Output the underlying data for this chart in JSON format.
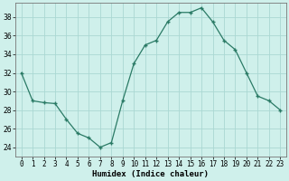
{
  "x": [
    0,
    1,
    2,
    3,
    4,
    5,
    6,
    7,
    8,
    9,
    10,
    11,
    12,
    13,
    14,
    15,
    16,
    17,
    18,
    19,
    20,
    21,
    22,
    23
  ],
  "y": [
    32,
    29,
    28.8,
    28.7,
    27,
    25.5,
    25,
    24,
    24.5,
    29,
    33,
    35,
    35.5,
    37.5,
    38.5,
    38.5,
    39,
    37.5,
    35.5,
    34.5,
    32,
    29.5,
    29,
    28
  ],
  "line_color": "#2a7a65",
  "marker_color": "#2a7a65",
  "bg_color": "#cff0eb",
  "grid_color": "#aad8d3",
  "xlabel": "Humidex (Indice chaleur)",
  "ylim": [
    23.0,
    39.5
  ],
  "yticks": [
    24,
    26,
    28,
    30,
    32,
    34,
    36,
    38
  ],
  "xtick_labels": [
    "0",
    "1",
    "2",
    "3",
    "4",
    "5",
    "6",
    "7",
    "8",
    "9",
    "1011",
    "1213",
    "1415",
    "1617",
    "1819",
    "2021",
    "2223"
  ],
  "xlabel_fontsize": 6.5,
  "tick_fontsize": 5.5
}
